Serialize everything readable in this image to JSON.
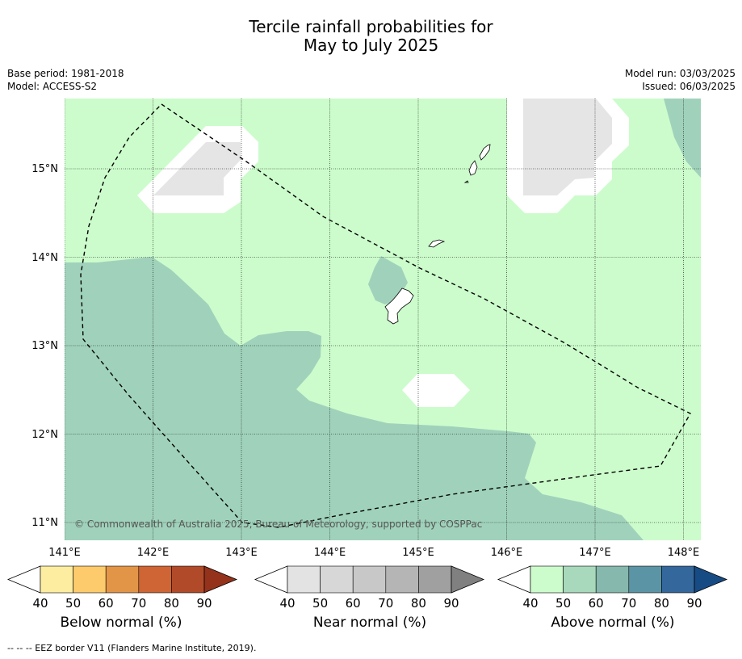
{
  "title_line1": "Tercile rainfall probabilities for",
  "title_line2": "May to July 2025",
  "base_period": "Base period: 1981-2018",
  "model": "Model: ACCESS-S2",
  "model_run": "Model run: 03/03/2025",
  "issued": "Issued: 06/03/2025",
  "copyright": "© Commonwealth of Australia 2025, Bureau of Meteorology, supported by COSPPac",
  "lat_labels": [
    "15°N",
    "14°N",
    "13°N",
    "12°N",
    "11°N"
  ],
  "lon_labels": [
    "141°E",
    "142°E",
    "143°E",
    "144°E",
    "145°E",
    "146°E",
    "147°E",
    "148°E"
  ],
  "colorbars": [
    {
      "name": "below",
      "title": "Below normal (%)",
      "ticks": [
        "40",
        "50",
        "60",
        "70",
        "80",
        "90"
      ],
      "colors": [
        "#ffffff",
        "#fdeda0",
        "#fdcb6b",
        "#e29547",
        "#cf6434",
        "#b14a28",
        "#95321b"
      ]
    },
    {
      "name": "near",
      "title": "Near normal (%)",
      "ticks": [
        "40",
        "50",
        "60",
        "70",
        "80",
        "90"
      ],
      "colors": [
        "#ffffff",
        "#e3e3e3",
        "#d7d7d7",
        "#c8c8c8",
        "#b5b5b5",
        "#a0a0a0",
        "#808080"
      ]
    },
    {
      "name": "above",
      "title": "Above normal (%)",
      "ticks": [
        "40",
        "50",
        "60",
        "70",
        "80",
        "90"
      ],
      "colors": [
        "#ffffff",
        "#ccfccc",
        "#a8d9bd",
        "#86b8ad",
        "#5b95a5",
        "#34679b",
        "#174b84"
      ]
    }
  ],
  "footer": "--  --  -- EEZ border V11 (Flanders Marine Institute, 2019).",
  "colors": {
    "above_40_50": "#ccfccc",
    "above_50_60": "#a0d2bb",
    "near_40_50": "#e5e5e5",
    "no_dominant": "#ffffff"
  }
}
